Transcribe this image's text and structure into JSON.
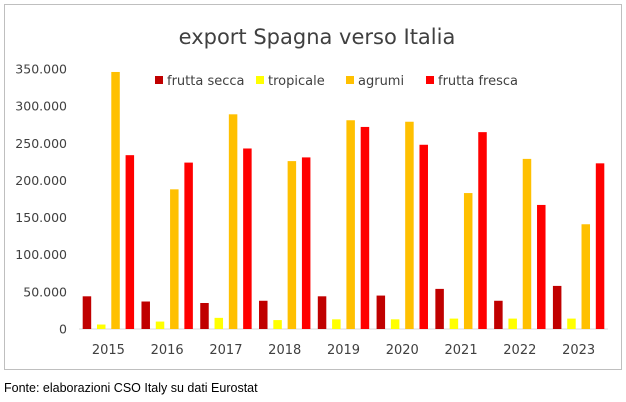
{
  "chart_data": {
    "type": "bar",
    "title": "export Spagna verso Italia",
    "xlabel": "",
    "ylabel": "",
    "categories": [
      "2015",
      "2016",
      "2017",
      "2018",
      "2019",
      "2020",
      "2021",
      "2022",
      "2023"
    ],
    "series": [
      {
        "name": "frutta secca",
        "color": "#c00000",
        "values": [
          44000,
          37000,
          35000,
          38000,
          44000,
          45000,
          54000,
          38000,
          58000
        ]
      },
      {
        "name": "tropicale",
        "color": "#ffff00",
        "values": [
          6000,
          10000,
          15000,
          12000,
          13000,
          13000,
          14000,
          14000,
          14000
        ]
      },
      {
        "name": "agrumi",
        "color": "#ffc000",
        "values": [
          346000,
          188000,
          289000,
          226000,
          281000,
          279000,
          183000,
          229000,
          141000
        ]
      },
      {
        "name": "frutta fresca",
        "color": "#ff0000",
        "values": [
          234000,
          224000,
          243000,
          231000,
          272000,
          248000,
          265000,
          167000,
          223000
        ]
      }
    ],
    "ylim": [
      0,
      350000
    ],
    "yticks": [
      0,
      50000,
      100000,
      150000,
      200000,
      250000,
      300000,
      350000
    ],
    "ytick_labels": [
      "0",
      "50.000",
      "100.000",
      "150.000",
      "200.000",
      "250.000",
      "300.000",
      "350.000"
    ],
    "grid": false,
    "legend_position": "top-right"
  },
  "source_note": "Fonte: elaborazioni CSO Italy su dati Eurostat"
}
